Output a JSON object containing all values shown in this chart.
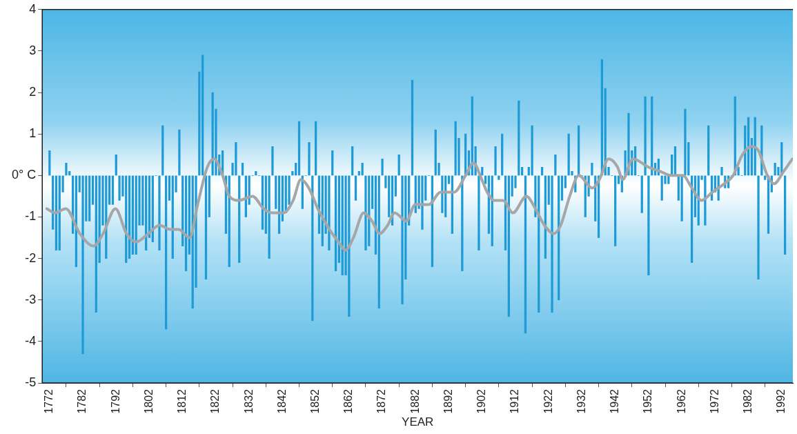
{
  "chart_data": {
    "type": "bar",
    "xlabel": "YEAR",
    "x": [
      1772,
      1773,
      1774,
      1775,
      1776,
      1777,
      1778,
      1779,
      1780,
      1781,
      1782,
      1783,
      1784,
      1785,
      1786,
      1787,
      1788,
      1789,
      1790,
      1791,
      1792,
      1793,
      1794,
      1795,
      1796,
      1797,
      1798,
      1799,
      1800,
      1801,
      1802,
      1803,
      1804,
      1805,
      1806,
      1807,
      1808,
      1809,
      1810,
      1811,
      1812,
      1813,
      1814,
      1815,
      1816,
      1817,
      1818,
      1819,
      1820,
      1821,
      1822,
      1823,
      1824,
      1825,
      1826,
      1827,
      1828,
      1829,
      1830,
      1831,
      1832,
      1833,
      1834,
      1835,
      1836,
      1837,
      1838,
      1839,
      1840,
      1841,
      1842,
      1843,
      1844,
      1845,
      1846,
      1847,
      1848,
      1849,
      1850,
      1851,
      1852,
      1853,
      1854,
      1855,
      1856,
      1857,
      1858,
      1859,
      1860,
      1861,
      1862,
      1863,
      1864,
      1865,
      1866,
      1867,
      1868,
      1869,
      1870,
      1871,
      1872,
      1873,
      1874,
      1875,
      1876,
      1877,
      1878,
      1879,
      1880,
      1881,
      1882,
      1883,
      1884,
      1885,
      1886,
      1887,
      1888,
      1889,
      1890,
      1891,
      1892,
      1893,
      1894,
      1895,
      1896,
      1897,
      1898,
      1899,
      1900,
      1901,
      1902,
      1903,
      1904,
      1905,
      1906,
      1907,
      1908,
      1909,
      1910,
      1911,
      1912,
      1913,
      1914,
      1915,
      1916,
      1917,
      1918,
      1919,
      1920,
      1921,
      1922,
      1923,
      1924,
      1925,
      1926,
      1927,
      1928,
      1929,
      1930,
      1931,
      1932,
      1933,
      1934,
      1935,
      1936,
      1937,
      1938,
      1939,
      1940,
      1941,
      1942,
      1943,
      1944,
      1945,
      1946,
      1947,
      1948,
      1949,
      1950,
      1951,
      1952,
      1953,
      1954,
      1955,
      1956,
      1957,
      1958,
      1959,
      1960,
      1961,
      1962,
      1963,
      1964,
      1965,
      1966,
      1967,
      1968,
      1969,
      1970,
      1971,
      1972,
      1973,
      1974,
      1975,
      1976,
      1977,
      1978,
      1979,
      1980,
      1981,
      1982,
      1983,
      1984,
      1985,
      1986,
      1987,
      1988,
      1989,
      1990,
      1991,
      1992,
      1993
    ],
    "series": [
      {
        "color": "#1e9bd7",
        "values": [
          0.6,
          -1.3,
          -1.8,
          -1.8,
          -0.4,
          0.3,
          0.1,
          -1.4,
          -2.2,
          -0.4,
          -4.3,
          -1.1,
          -1.1,
          -0.7,
          -3.3,
          -2.1,
          -1.2,
          -2.0,
          -0.7,
          -0.7,
          0.5,
          -0.6,
          -0.5,
          -2.1,
          -2.0,
          -1.9,
          -1.9,
          -1.2,
          -1.2,
          -1.8,
          -1.5,
          -1.6,
          0,
          -1.8,
          1.2,
          -3.7,
          -0.6,
          -2.0,
          -0.4,
          1.1,
          -1.7,
          -2.3,
          -1.9,
          -3.2,
          -2.7,
          2.5,
          2.9,
          -2.5,
          -1.0,
          2.0,
          1.6,
          0.5,
          0.6,
          -1.4,
          -2.2,
          0.3,
          0.8,
          -2.1,
          0.3,
          -1.0,
          -0.7,
          0,
          0.1,
          0,
          -1.3,
          -1.4,
          -2.0,
          0.7,
          -0.8,
          -1.4,
          -1.1,
          -0.9,
          -0.7,
          0.1,
          0.3,
          1.3,
          -0.8,
          0,
          0.8,
          -3.5,
          1.3,
          -1.4,
          -1.7,
          -1.4,
          -1.8,
          0.6,
          -2.3,
          -2.1,
          -2.4,
          -2.4,
          -3.4,
          0.7,
          -0.6,
          0.1,
          0.3,
          -1.8,
          -1.7,
          -0.8,
          -1.9,
          -3.2,
          0.4,
          -0.3,
          -1.0,
          -1.2,
          -0.5,
          0.5,
          -3.1,
          -2.5,
          -1.2,
          2.3,
          -0.9,
          -0.8,
          -1.3,
          -0.6,
          0,
          -2.2,
          1.1,
          0.3,
          -0.9,
          -1.0,
          -0.2,
          -1.4,
          1.3,
          0.9,
          -2.3,
          1.0,
          0.6,
          1.9,
          0.7,
          -1.8,
          0.2,
          -0.2,
          -1.4,
          -1.7,
          0.7,
          -0.1,
          1.0,
          -1.8,
          -3.4,
          -0.5,
          -0.3,
          1.8,
          0.2,
          -3.8,
          0.2,
          1.2,
          -1.0,
          -3.3,
          0.2,
          -2.0,
          -0.7,
          -3.3,
          0.5,
          -3.0,
          -0.6,
          -0.3,
          1.0,
          0.1,
          -0.4,
          1.2,
          0,
          -1.0,
          -0.5,
          0.3,
          -1.1,
          -1.5,
          2.8,
          2.1,
          0.2,
          0,
          -1.7,
          -0.2,
          -0.4,
          0.6,
          1.5,
          0.6,
          0.7,
          0,
          -0.9,
          1.9,
          -2.4,
          1.9,
          0.3,
          0.4,
          -0.6,
          -0.2,
          -0.2,
          0.5,
          0.7,
          -0.6,
          -1.1,
          1.6,
          0.8,
          -2.1,
          -1.0,
          -1.2,
          -0.1,
          -1.2,
          1.2,
          -0.6,
          -0.4,
          -0.6,
          0.2,
          -0.3,
          -0.3,
          0,
          1.9,
          0.2,
          0,
          1.2,
          1.4,
          0.9,
          1.4,
          -2.5,
          1.2,
          -0.1,
          -1.4,
          -0.4,
          0.3,
          0.2,
          0.8,
          -1.9
        ]
      },
      {
        "type": "line",
        "color": "#a6a6a6",
        "x": [
          1771.2,
          1773.6,
          1776.9,
          1781.1,
          1785.2,
          1788.1,
          1791.8,
          1795.1,
          1798.0,
          1801.7,
          1805.0,
          1808.3,
          1810.8,
          1814.1,
          1816.5,
          1819.4,
          1821.5,
          1824.0,
          1826.0,
          1828.9,
          1833.0,
          1836.3,
          1839.0,
          1842.3,
          1845.2,
          1847.5,
          1849.9,
          1852.6,
          1856.1,
          1858.8,
          1860.9,
          1863.3,
          1866.4,
          1868.9,
          1871.2,
          1873.6,
          1875.7,
          1879.2,
          1881.9,
          1886.0,
          1889.5,
          1893.6,
          1897.0,
          1899.4,
          1901.9,
          1903.5,
          1905.6,
          1908.3,
          1911.2,
          1915.3,
          1918.0,
          1920.7,
          1923.5,
          1925.6,
          1928.3,
          1931.0,
          1935.1,
          1937.2,
          1940.0,
          1942.7,
          1944.2,
          1947.3,
          1952.0,
          1955.5,
          1958.8,
          1962.3,
          1965.0,
          1967.9,
          1971.2,
          1974.7,
          1977.4,
          1980.2,
          1982.9,
          1985.0,
          1987.7,
          1989.7,
          1992.6,
          1995.2
        ],
        "values": [
          -0.8,
          -0.9,
          -0.8,
          -1.4,
          -1.7,
          -1.4,
          -0.8,
          -1.4,
          -1.6,
          -1.4,
          -1.2,
          -1.3,
          -1.3,
          -1.5,
          -0.7,
          0.2,
          0.4,
          0.0,
          -0.5,
          -0.6,
          -0.5,
          -0.8,
          -0.9,
          -0.9,
          -0.6,
          -0.1,
          -0.3,
          -0.8,
          -1.3,
          -1.6,
          -1.8,
          -1.5,
          -0.9,
          -1.1,
          -1.4,
          -1.2,
          -0.9,
          -1.1,
          -0.7,
          -0.7,
          -0.4,
          -0.4,
          0.0,
          0.3,
          -0.1,
          -0.4,
          -0.6,
          -0.6,
          -0.9,
          -0.5,
          -0.8,
          -1.2,
          -1.4,
          -1.2,
          -0.5,
          0.0,
          -0.3,
          -0.1,
          0.4,
          0.2,
          -0.1,
          0.4,
          0.2,
          0.1,
          0.0,
          0.0,
          -0.3,
          -0.6,
          -0.4,
          -0.2,
          0.0,
          0.5,
          0.7,
          0.6,
          0.0,
          -0.2,
          0.1,
          0.4
        ]
      }
    ],
    "xlim": [
      1769.8,
      1995.4
    ],
    "xticks": [
      1772,
      1782,
      1792,
      1802,
      1812,
      1822,
      1832,
      1842,
      1852,
      1862,
      1872,
      1882,
      1892,
      1902,
      1912,
      1922,
      1932,
      1942,
      1952,
      1962,
      1972,
      1982,
      1992
    ],
    "ylim": [
      -5,
      4
    ],
    "yticks": [
      -5,
      -4,
      -3,
      -2,
      -1,
      {
        "value": 0,
        "label": "0° C"
      },
      1,
      2,
      3,
      4
    ],
    "grid": false,
    "legend": false
  }
}
